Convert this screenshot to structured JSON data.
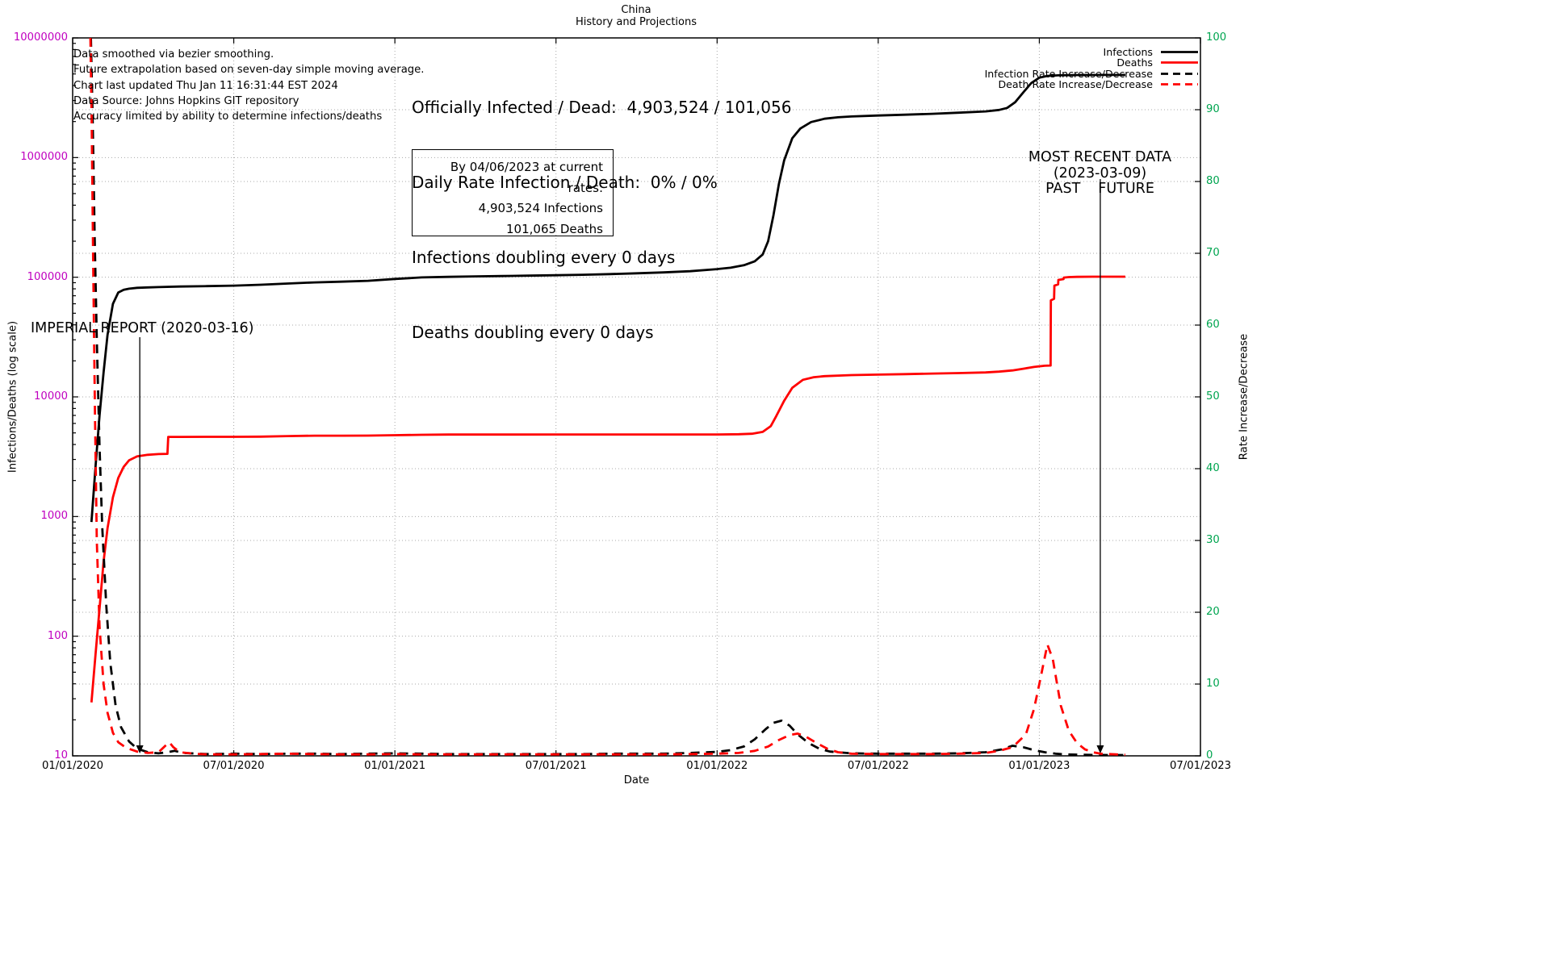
{
  "title": "China",
  "subtitle": "History and Projections",
  "notes": [
    "Data smoothed via bezier smoothing.",
    "Future extrapolation based on seven-day simple moving average.",
    "Chart last updated Thu Jan 11 16:31:44 EST 2024",
    "Data Source: Johns Hopkins GIT repository",
    "Accuracy limited by ability to determine infections/deaths"
  ],
  "stats": {
    "line1": "Officially Infected / Dead:  4,903,524 / 101,056",
    "line2": "Daily Rate Infection / Death:  0% / 0%",
    "line3": "Infections doubling every 0 days",
    "line4": "Deaths doubling every 0 days"
  },
  "projection_box": {
    "header": "By 04/06/2023 at current rates:",
    "infections": "4,903,524 Infections",
    "deaths": "101,065 Deaths"
  },
  "annotations": {
    "imperial": {
      "label": "IMPERIAL REPORT (2020-03-16)",
      "x_month": 2.5
    },
    "recent": {
      "line1": "MOST RECENT DATA",
      "line2": "(2023-03-09)",
      "past": "PAST",
      "future": "FUTURE",
      "x_month": 38.27
    }
  },
  "legend": [
    {
      "label": "Infections",
      "color": "#000000",
      "dashed": false
    },
    {
      "label": "Deaths",
      "color": "#ff0000",
      "dashed": false
    },
    {
      "label": "Infection Rate Increase/Decrease",
      "color": "#000000",
      "dashed": true
    },
    {
      "label": "Death Rate Increase/Decrease",
      "color": "#ff0000",
      "dashed": true
    }
  ],
  "axes": {
    "x": {
      "label": "Date",
      "tick_labels": [
        "01/01/2020",
        "07/01/2020",
        "01/01/2021",
        "07/01/2021",
        "01/01/2022",
        "07/01/2022",
        "01/01/2023",
        "07/01/2023"
      ],
      "tick_months": [
        0,
        6,
        12,
        18,
        24,
        30,
        36,
        42
      ]
    },
    "y1": {
      "label": "Infections/Deaths (log scale)",
      "tick_labels": [
        "10",
        "100",
        "1000",
        "10000",
        "100000",
        "1000000",
        "10000000"
      ],
      "tick_values": [
        10,
        100,
        1000,
        10000,
        100000,
        1000000,
        10000000
      ],
      "color": "#c000c0",
      "scale": "log",
      "range": [
        10,
        10000000
      ]
    },
    "y2": {
      "label": "Rate Increase/Decrease",
      "tick_labels": [
        "0",
        "10",
        "20",
        "30",
        "40",
        "50",
        "60",
        "70",
        "80",
        "90",
        "100"
      ],
      "tick_values": [
        0,
        10,
        20,
        30,
        40,
        50,
        60,
        70,
        80,
        90,
        100
      ],
      "color": "#00a550",
      "scale": "linear",
      "range": [
        0,
        100
      ]
    }
  },
  "chart_data": {
    "type": "line",
    "title": "China — History and Projections",
    "x_unit": "months_since_2020-01-01",
    "x_range": [
      0,
      42
    ],
    "grid": true,
    "legend_position": "top-right",
    "series": [
      {
        "name": "Infections",
        "axis": "y1",
        "color": "#000000",
        "dashed": false,
        "points": [
          [
            0.7,
            900
          ],
          [
            0.85,
            2600
          ],
          [
            1.0,
            7000
          ],
          [
            1.15,
            16000
          ],
          [
            1.3,
            33000
          ],
          [
            1.5,
            60000
          ],
          [
            1.7,
            74500
          ],
          [
            1.9,
            78500
          ],
          [
            2.1,
            80200
          ],
          [
            2.4,
            81600
          ],
          [
            2.8,
            82200
          ],
          [
            3.2,
            82700
          ],
          [
            4,
            83600
          ],
          [
            5,
            84200
          ],
          [
            6,
            85000
          ],
          [
            7,
            86500
          ],
          [
            8,
            88500
          ],
          [
            9,
            90500
          ],
          [
            10,
            91800
          ],
          [
            11,
            93300
          ],
          [
            12,
            96700
          ],
          [
            13,
            99600
          ],
          [
            14,
            100700
          ],
          [
            15,
            101600
          ],
          [
            16,
            102300
          ],
          [
            17,
            103100
          ],
          [
            18,
            103900
          ],
          [
            19,
            104900
          ],
          [
            20,
            106200
          ],
          [
            21,
            107900
          ],
          [
            22,
            109700
          ],
          [
            23,
            112300
          ],
          [
            24,
            117000
          ],
          [
            24.5,
            120000
          ],
          [
            25,
            126000
          ],
          [
            25.4,
            136000
          ],
          [
            25.7,
            155000
          ],
          [
            25.9,
            200000
          ],
          [
            26.1,
            330000
          ],
          [
            26.3,
            600000
          ],
          [
            26.5,
            950000
          ],
          [
            26.8,
            1450000
          ],
          [
            27.1,
            1750000
          ],
          [
            27.5,
            1980000
          ],
          [
            28,
            2110000
          ],
          [
            28.5,
            2170000
          ],
          [
            29,
            2205000
          ],
          [
            30,
            2245000
          ],
          [
            31,
            2280000
          ],
          [
            32,
            2320000
          ],
          [
            33,
            2370000
          ],
          [
            34,
            2430000
          ],
          [
            34.5,
            2500000
          ],
          [
            34.8,
            2600000
          ],
          [
            35.1,
            2900000
          ],
          [
            35.4,
            3500000
          ],
          [
            35.7,
            4200000
          ],
          [
            36,
            4650000
          ],
          [
            36.3,
            4810000
          ],
          [
            36.7,
            4865000
          ],
          [
            37,
            4885000
          ],
          [
            37.5,
            4897000
          ],
          [
            38.27,
            4903524
          ],
          [
            39.2,
            4903524
          ]
        ]
      },
      {
        "name": "Deaths",
        "axis": "y1",
        "color": "#ff0000",
        "dashed": false,
        "points": [
          [
            0.7,
            28
          ],
          [
            0.85,
            70
          ],
          [
            1.0,
            170
          ],
          [
            1.15,
            420
          ],
          [
            1.3,
            800
          ],
          [
            1.5,
            1450
          ],
          [
            1.7,
            2100
          ],
          [
            1.9,
            2600
          ],
          [
            2.1,
            2950
          ],
          [
            2.4,
            3180
          ],
          [
            2.8,
            3280
          ],
          [
            3.2,
            3325
          ],
          [
            3.53,
            3342
          ],
          [
            3.56,
            4632
          ],
          [
            4,
            4633
          ],
          [
            5,
            4638
          ],
          [
            6,
            4641
          ],
          [
            7,
            4650
          ],
          [
            8,
            4700
          ],
          [
            9,
            4737
          ],
          [
            10,
            4742
          ],
          [
            11,
            4750
          ],
          [
            12,
            4782
          ],
          [
            13,
            4820
          ],
          [
            14,
            4840
          ],
          [
            15,
            4845
          ],
          [
            16,
            4846
          ],
          [
            18,
            4848
          ],
          [
            20,
            4849
          ],
          [
            22,
            4849
          ],
          [
            24,
            4852
          ],
          [
            24.8,
            4870
          ],
          [
            25.3,
            4920
          ],
          [
            25.7,
            5100
          ],
          [
            26,
            5700
          ],
          [
            26.2,
            6900
          ],
          [
            26.5,
            9300
          ],
          [
            26.8,
            11900
          ],
          [
            27.2,
            13900
          ],
          [
            27.6,
            14600
          ],
          [
            28,
            14900
          ],
          [
            29,
            15200
          ],
          [
            30,
            15350
          ],
          [
            31,
            15500
          ],
          [
            32,
            15650
          ],
          [
            33,
            15800
          ],
          [
            34,
            16000
          ],
          [
            34.5,
            16250
          ],
          [
            35,
            16650
          ],
          [
            35.4,
            17200
          ],
          [
            35.8,
            17800
          ],
          [
            36.2,
            18200
          ],
          [
            36.42,
            18300
          ],
          [
            36.43,
            64000
          ],
          [
            36.55,
            66000
          ],
          [
            36.56,
            85000
          ],
          [
            36.7,
            87000
          ],
          [
            36.71,
            95000
          ],
          [
            36.9,
            96500
          ],
          [
            36.91,
            99300
          ],
          [
            37.1,
            100300
          ],
          [
            37.4,
            100800
          ],
          [
            38,
            101050
          ],
          [
            38.27,
            101056
          ],
          [
            39.2,
            101065
          ]
        ]
      },
      {
        "name": "Infection Rate Increase/Decrease",
        "axis": "y2",
        "color": "#000000",
        "dashed": true,
        "points": [
          [
            0.68,
            100
          ],
          [
            0.75,
            88
          ],
          [
            0.82,
            72
          ],
          [
            0.9,
            58
          ],
          [
            1.0,
            43
          ],
          [
            1.1,
            32
          ],
          [
            1.25,
            21
          ],
          [
            1.4,
            13
          ],
          [
            1.6,
            7
          ],
          [
            1.8,
            4
          ],
          [
            2.1,
            2
          ],
          [
            2.4,
            1
          ],
          [
            2.8,
            0.5
          ],
          [
            3.2,
            0.35
          ],
          [
            3.6,
            0.55
          ],
          [
            3.8,
            0.7
          ],
          [
            4.1,
            0.4
          ],
          [
            5,
            0.25
          ],
          [
            6,
            0.3
          ],
          [
            7,
            0.25
          ],
          [
            8,
            0.3
          ],
          [
            9,
            0.3
          ],
          [
            10,
            0.25
          ],
          [
            11,
            0.3
          ],
          [
            12,
            0.35
          ],
          [
            13,
            0.3
          ],
          [
            14,
            0.25
          ],
          [
            15,
            0.25
          ],
          [
            16,
            0.25
          ],
          [
            17,
            0.25
          ],
          [
            18,
            0.25
          ],
          [
            19,
            0.25
          ],
          [
            20,
            0.3
          ],
          [
            21,
            0.3
          ],
          [
            22,
            0.3
          ],
          [
            23,
            0.4
          ],
          [
            24,
            0.55
          ],
          [
            24.5,
            0.8
          ],
          [
            25,
            1.3
          ],
          [
            25.4,
            2.3
          ],
          [
            25.8,
            3.7
          ],
          [
            26.1,
            4.6
          ],
          [
            26.4,
            4.9
          ],
          [
            26.7,
            4.2
          ],
          [
            27,
            3
          ],
          [
            27.4,
            1.8
          ],
          [
            27.8,
            1
          ],
          [
            28.2,
            0.6
          ],
          [
            29,
            0.35
          ],
          [
            30,
            0.3
          ],
          [
            31,
            0.3
          ],
          [
            32,
            0.3
          ],
          [
            33,
            0.35
          ],
          [
            34,
            0.5
          ],
          [
            34.6,
            0.9
          ],
          [
            35,
            1.4
          ],
          [
            35.4,
            1.2
          ],
          [
            35.8,
            0.8
          ],
          [
            36.2,
            0.5
          ],
          [
            36.6,
            0.3
          ],
          [
            37,
            0.2
          ],
          [
            38,
            0.12
          ],
          [
            39.2,
            0.1
          ]
        ]
      },
      {
        "name": "Death Rate Increase/Decrease",
        "axis": "y2",
        "color": "#ff0000",
        "dashed": true,
        "points": [
          [
            0.66,
            100
          ],
          [
            0.71,
            88
          ],
          [
            0.76,
            70
          ],
          [
            0.83,
            48
          ],
          [
            0.9,
            30
          ],
          [
            1.0,
            18
          ],
          [
            1.15,
            10
          ],
          [
            1.3,
            6
          ],
          [
            1.5,
            3.2
          ],
          [
            1.7,
            1.9
          ],
          [
            2.0,
            1.1
          ],
          [
            2.4,
            0.6
          ],
          [
            2.8,
            0.4
          ],
          [
            3.2,
            0.5
          ],
          [
            3.45,
            1.4
          ],
          [
            3.6,
            1.9
          ],
          [
            3.75,
            1.2
          ],
          [
            4.0,
            0.5
          ],
          [
            4.5,
            0.3
          ],
          [
            5,
            0.2
          ],
          [
            6,
            0.2
          ],
          [
            7,
            0.25
          ],
          [
            8,
            0.3
          ],
          [
            9,
            0.25
          ],
          [
            10,
            0.2
          ],
          [
            11,
            0.2
          ],
          [
            12,
            0.25
          ],
          [
            13,
            0.2
          ],
          [
            14,
            0.2
          ],
          [
            15,
            0.2
          ],
          [
            16,
            0.2
          ],
          [
            17,
            0.2
          ],
          [
            18,
            0.2
          ],
          [
            19,
            0.2
          ],
          [
            20,
            0.2
          ],
          [
            21,
            0.2
          ],
          [
            22,
            0.2
          ],
          [
            23,
            0.25
          ],
          [
            24,
            0.3
          ],
          [
            24.8,
            0.4
          ],
          [
            25.4,
            0.7
          ],
          [
            25.9,
            1.3
          ],
          [
            26.3,
            2.2
          ],
          [
            26.7,
            2.9
          ],
          [
            27,
            3.1
          ],
          [
            27.3,
            2.7
          ],
          [
            27.7,
            1.8
          ],
          [
            28.1,
            1
          ],
          [
            28.5,
            0.5
          ],
          [
            29,
            0.3
          ],
          [
            30,
            0.25
          ],
          [
            31,
            0.25
          ],
          [
            32,
            0.25
          ],
          [
            33,
            0.3
          ],
          [
            34,
            0.4
          ],
          [
            34.5,
            0.7
          ],
          [
            35,
            1.2
          ],
          [
            35.5,
            3
          ],
          [
            35.8,
            6.5
          ],
          [
            36,
            10
          ],
          [
            36.3,
            15.5
          ],
          [
            36.5,
            13.5
          ],
          [
            36.8,
            7
          ],
          [
            37.1,
            3.5
          ],
          [
            37.4,
            1.8
          ],
          [
            37.7,
            0.9
          ],
          [
            38,
            0.5
          ],
          [
            38.27,
            0.3
          ],
          [
            39.2,
            0.15
          ]
        ]
      }
    ]
  }
}
